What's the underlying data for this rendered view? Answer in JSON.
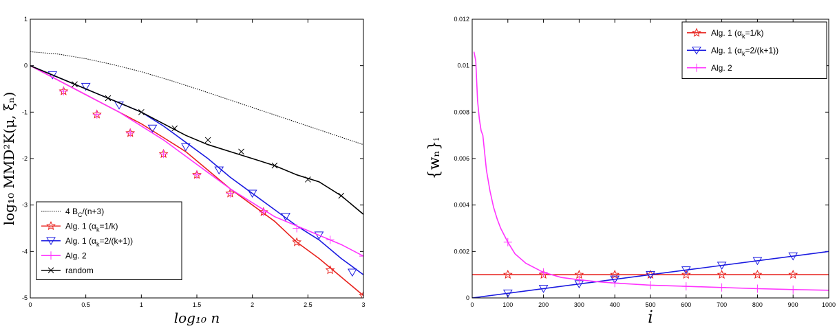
{
  "chart_data": [
    {
      "type": "line",
      "xlabel": "log₁₀ n",
      "ylabel": "log₁₀ MMD²K(μ, ξₙ)",
      "xlim": [
        0,
        3
      ],
      "ylim": [
        -5,
        1
      ],
      "xticks": [
        "0",
        "0.5",
        "1",
        "1.5",
        "2",
        "2.5",
        "3"
      ],
      "yticks": [
        "1",
        "0",
        "-1",
        "-2",
        "-3",
        "-4",
        "-5"
      ],
      "legend_position": "bottom-left",
      "grid": false,
      "series": [
        {
          "name": "4 Bₙ/(n+3)",
          "legend": [
            "4 B",
            "C",
            "/(n+3)"
          ],
          "color": "#000000",
          "style": "dotted",
          "marker": "none",
          "x": [
            0,
            0.25,
            0.5,
            0.75,
            1,
            1.25,
            1.5,
            1.75,
            2,
            2.25,
            2.5,
            2.75,
            3
          ],
          "y": [
            0.3,
            0.25,
            0.15,
            0.02,
            -0.13,
            -0.31,
            -0.5,
            -0.7,
            -0.9,
            -1.1,
            -1.3,
            -1.5,
            -1.7
          ]
        },
        {
          "name": "Alg. 1 (αk=1/k)",
          "legend": [
            "Alg. 1 (α",
            "k",
            "=1/k)"
          ],
          "color": "#e8221d",
          "style": "solid",
          "marker": "star",
          "x": [
            0,
            0.2,
            0.4,
            0.6,
            0.8,
            1,
            1.2,
            1.4,
            1.6,
            1.8,
            2,
            2.2,
            2.4,
            2.6,
            2.8,
            3
          ],
          "y": [
            0,
            -0.25,
            -0.5,
            -0.75,
            -1.0,
            -1.25,
            -1.55,
            -1.85,
            -2.25,
            -2.65,
            -3.0,
            -3.35,
            -3.8,
            -4.15,
            -4.55,
            -4.95
          ],
          "marker_x": [
            0.3,
            0.6,
            0.9,
            1.2,
            1.5,
            1.8,
            2.1,
            2.4,
            2.7,
            3
          ],
          "marker_y": [
            -0.55,
            -1.05,
            -1.45,
            -1.9,
            -2.35,
            -2.75,
            -3.15,
            -3.8,
            -4.4,
            -4.95
          ]
        },
        {
          "name": "Alg. 1 (αk=2/(k+1))",
          "legend": [
            "Alg. 1 (α",
            "k",
            "=2/(k+1))"
          ],
          "color": "#1a1ae0",
          "style": "solid",
          "marker": "triangle-down",
          "x": [
            0,
            0.2,
            0.4,
            0.6,
            0.8,
            1,
            1.2,
            1.4,
            1.6,
            1.8,
            2,
            2.2,
            2.4,
            2.6,
            2.8,
            3
          ],
          "y": [
            0,
            -0.2,
            -0.4,
            -0.6,
            -0.8,
            -1.0,
            -1.3,
            -1.65,
            -2.0,
            -2.4,
            -2.75,
            -3.1,
            -3.45,
            -3.75,
            -4.15,
            -4.5
          ],
          "marker_x": [
            0.2,
            0.5,
            0.8,
            1.1,
            1.4,
            1.7,
            2.0,
            2.3,
            2.6,
            2.9
          ],
          "marker_y": [
            -0.2,
            -0.45,
            -0.85,
            -1.35,
            -1.75,
            -2.25,
            -2.75,
            -3.25,
            -3.65,
            -4.45
          ]
        },
        {
          "name": "Alg. 2",
          "legend": [
            "Alg. 2",
            "",
            ""
          ],
          "color": "#ff33ff",
          "style": "solid",
          "marker": "plus",
          "x": [
            0,
            0.2,
            0.4,
            0.6,
            0.8,
            1,
            1.2,
            1.4,
            1.6,
            1.8,
            2,
            2.2,
            2.4,
            2.6,
            2.8,
            3
          ],
          "y": [
            0,
            -0.25,
            -0.5,
            -0.75,
            -1.0,
            -1.3,
            -1.6,
            -1.95,
            -2.3,
            -2.65,
            -2.95,
            -3.25,
            -3.45,
            -3.65,
            -3.85,
            -4.1
          ],
          "marker_x": [
            0.3,
            0.6,
            0.9,
            1.2,
            1.5,
            1.8,
            2.1,
            2.4,
            2.7,
            3
          ],
          "marker_y": [
            -0.55,
            -1.05,
            -1.45,
            -1.9,
            -2.35,
            -2.75,
            -3.15,
            -3.5,
            -3.75,
            -4.1
          ]
        },
        {
          "name": "random",
          "legend": [
            "random",
            "",
            ""
          ],
          "color": "#000000",
          "style": "solid",
          "marker": "x",
          "x": [
            0,
            0.2,
            0.4,
            0.6,
            0.8,
            1,
            1.2,
            1.4,
            1.6,
            1.8,
            2,
            2.2,
            2.4,
            2.6,
            2.8,
            3
          ],
          "y": [
            0,
            -0.2,
            -0.4,
            -0.6,
            -0.8,
            -1.0,
            -1.25,
            -1.5,
            -1.7,
            -1.85,
            -2.0,
            -2.15,
            -2.35,
            -2.5,
            -2.8,
            -3.2
          ],
          "marker_x": [
            0.4,
            0.7,
            1.0,
            1.3,
            1.6,
            1.9,
            2.2,
            2.5,
            2.8
          ],
          "marker_y": [
            -0.4,
            -0.7,
            -1.0,
            -1.35,
            -1.6,
            -1.85,
            -2.15,
            -2.45,
            -2.8
          ]
        }
      ]
    },
    {
      "type": "line",
      "xlabel": "i",
      "ylabel": "{wₙ}ᵢ",
      "xlim": [
        0,
        1000
      ],
      "ylim": [
        0,
        0.012
      ],
      "xticks": [
        "0",
        "100",
        "200",
        "300",
        "400",
        "500",
        "600",
        "700",
        "800",
        "900",
        "1000"
      ],
      "yticks": [
        "0.012",
        "0.01",
        "0.008",
        "0.006",
        "0.004",
        "0.002",
        "0"
      ],
      "legend_position": "top-right",
      "grid": false,
      "series": [
        {
          "name": "Alg. 1 (αk=1/k)",
          "legend": [
            "Alg. 1 (α",
            "k",
            "=1/k)"
          ],
          "color": "#e8221d",
          "style": "solid",
          "marker": "star",
          "x": [
            0,
            1000
          ],
          "y": [
            0.001,
            0.001
          ],
          "marker_x": [
            100,
            200,
            300,
            400,
            500,
            600,
            700,
            800,
            900
          ],
          "marker_y": [
            0.001,
            0.001,
            0.001,
            0.001,
            0.001,
            0.001,
            0.001,
            0.001,
            0.001
          ]
        },
        {
          "name": "Alg. 1 (αk=2/(k+1))",
          "legend": [
            "Alg. 1 (α",
            "k",
            "=2/(k+1))"
          ],
          "color": "#1a1ae0",
          "style": "solid",
          "marker": "triangle-down",
          "x": [
            0,
            1000
          ],
          "y": [
            0,
            0.002
          ],
          "marker_x": [
            100,
            200,
            300,
            400,
            500,
            600,
            700,
            800,
            900
          ],
          "marker_y": [
            0.0002,
            0.0004,
            0.0006,
            0.0008,
            0.001,
            0.0012,
            0.0014,
            0.0016,
            0.0018
          ]
        },
        {
          "name": "Alg. 2",
          "legend": [
            "Alg. 2",
            "",
            ""
          ],
          "color": "#ff33ff",
          "style": "solid",
          "marker": "plus",
          "x": [
            5,
            10,
            15,
            20,
            25,
            30,
            40,
            50,
            60,
            70,
            80,
            100,
            120,
            150,
            200,
            250,
            300,
            350,
            400,
            500,
            600,
            700,
            800,
            900,
            1000
          ],
          "y": [
            0.0106,
            0.0102,
            0.0085,
            0.0077,
            0.0072,
            0.007,
            0.0055,
            0.0046,
            0.0039,
            0.0034,
            0.003,
            0.0024,
            0.0019,
            0.0015,
            0.0011,
            0.00088,
            0.00078,
            0.0007,
            0.00064,
            0.00055,
            0.0005,
            0.00045,
            0.0004,
            0.00036,
            0.00033
          ],
          "marker_x": [
            100,
            200,
            300,
            400,
            500,
            600,
            700,
            800,
            900
          ],
          "marker_y": [
            0.0024,
            0.0011,
            0.00078,
            0.00064,
            0.00055,
            0.0005,
            0.00045,
            0.0004,
            0.00036
          ]
        }
      ]
    }
  ]
}
